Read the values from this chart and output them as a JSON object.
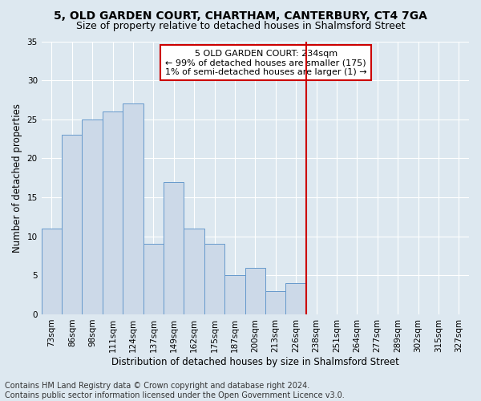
{
  "title1": "5, OLD GARDEN COURT, CHARTHAM, CANTERBURY, CT4 7GA",
  "title2": "Size of property relative to detached houses in Shalmsford Street",
  "xlabel": "Distribution of detached houses by size in Shalmsford Street",
  "ylabel": "Number of detached properties",
  "footer1": "Contains HM Land Registry data © Crown copyright and database right 2024.",
  "footer2": "Contains public sector information licensed under the Open Government Licence v3.0.",
  "bar_labels": [
    "73sqm",
    "86sqm",
    "98sqm",
    "111sqm",
    "124sqm",
    "137sqm",
    "149sqm",
    "162sqm",
    "175sqm",
    "187sqm",
    "200sqm",
    "213sqm",
    "226sqm",
    "238sqm",
    "251sqm",
    "264sqm",
    "277sqm",
    "289sqm",
    "302sqm",
    "315sqm",
    "327sqm"
  ],
  "bar_values": [
    11,
    23,
    25,
    26,
    27,
    9,
    17,
    11,
    9,
    5,
    6,
    3,
    4,
    0,
    0,
    0,
    0,
    0,
    0,
    0,
    0
  ],
  "bar_color": "#ccd9e8",
  "bar_edge_color": "#6699cc",
  "vline_index": 13,
  "vline_color": "#cc0000",
  "annotation_text": "5 OLD GARDEN COURT: 234sqm\n← 99% of detached houses are smaller (175)\n1% of semi-detached houses are larger (1) →",
  "annotation_box_color": "#cc0000",
  "ylim": [
    0,
    35
  ],
  "yticks": [
    0,
    5,
    10,
    15,
    20,
    25,
    30,
    35
  ],
  "background_color": "#dde8f0",
  "plot_bg_color": "#dde8f0",
  "grid_color": "#ffffff",
  "title_fontsize": 10,
  "subtitle_fontsize": 9,
  "axis_label_fontsize": 8.5,
  "tick_fontsize": 7.5,
  "footer_fontsize": 7,
  "ann_fontsize": 8
}
